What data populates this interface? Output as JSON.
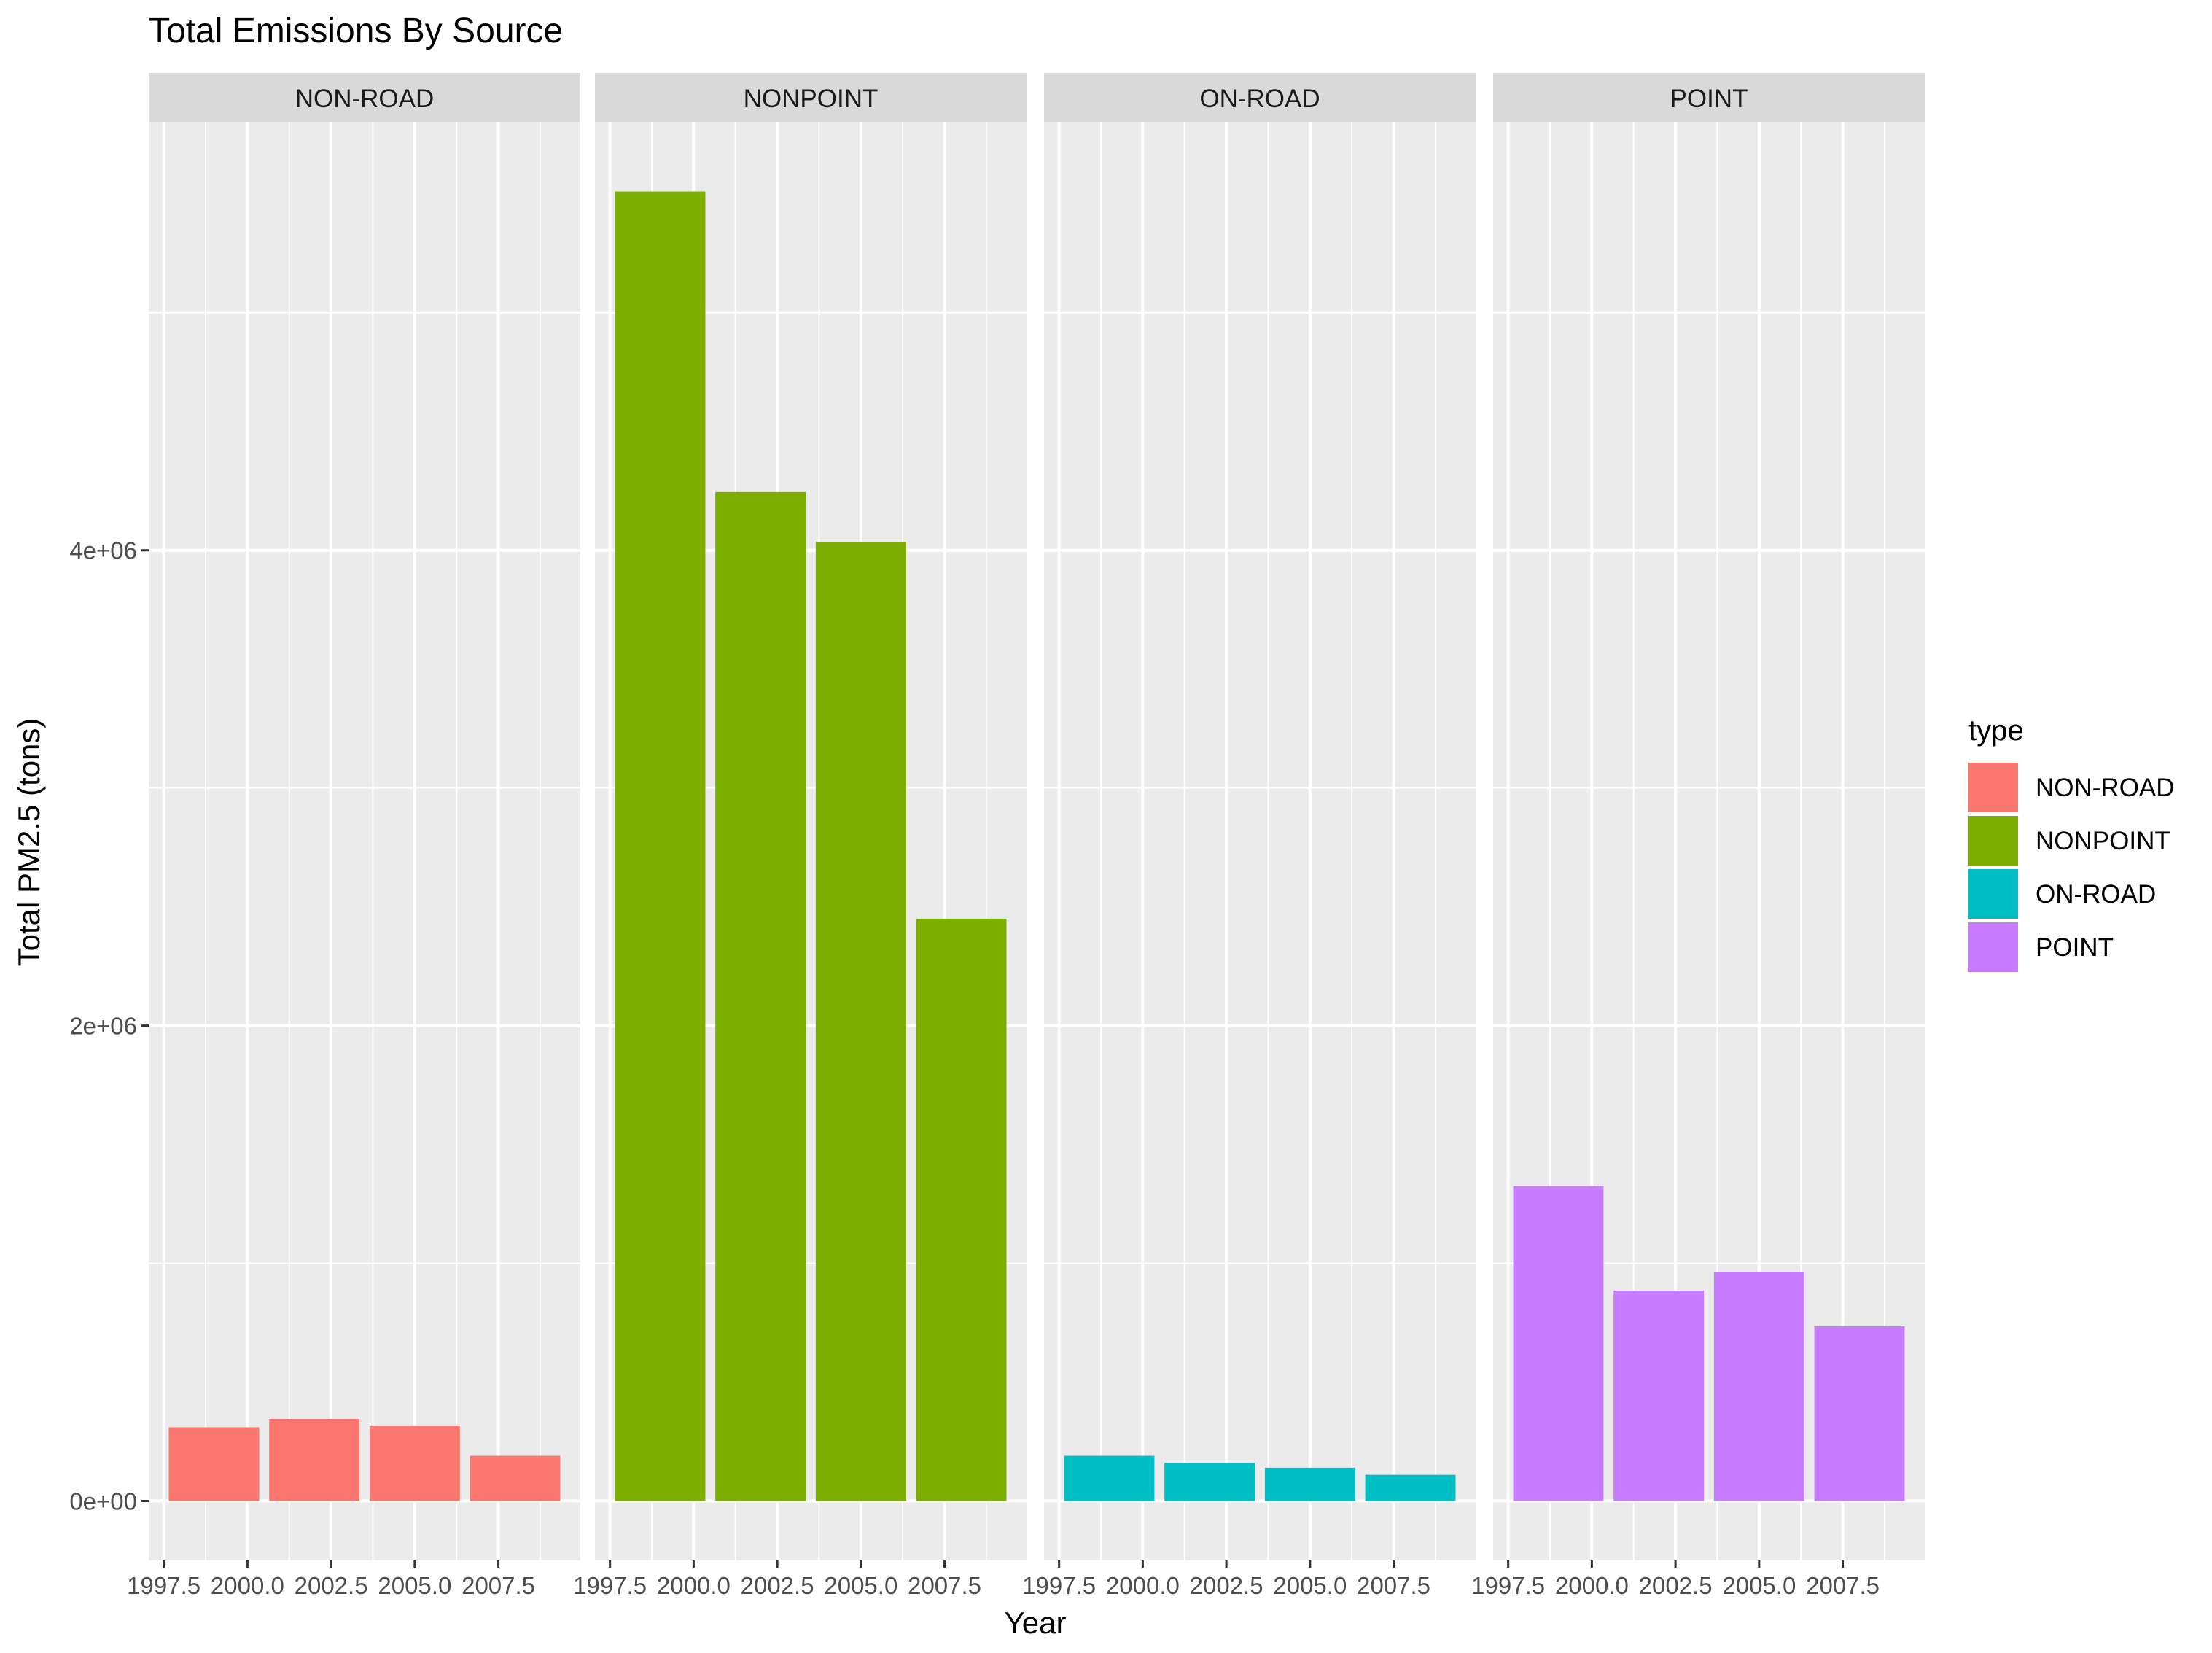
{
  "chart_data": {
    "type": "bar",
    "title": "Total Emissions By Source",
    "xlabel": "Year",
    "ylabel": "Total PM2.5 (tons)",
    "facet_by": "type",
    "facets": [
      "NON-ROAD",
      "NONPOINT",
      "ON-ROAD",
      "POINT"
    ],
    "x": [
      1999,
      2002,
      2005,
      2008
    ],
    "x_ticks": [
      1997.5,
      2000.0,
      2002.5,
      2005.0,
      2007.5
    ],
    "x_tick_labels": [
      "1997.5",
      "2000.0",
      "2002.5",
      "2005.0",
      "2007.5"
    ],
    "xlim": [
      1997.05,
      2009.95
    ],
    "y_ticks": [
      0,
      2000000,
      4000000
    ],
    "y_tick_labels": [
      "0e+00",
      "2e+06",
      "4e+06"
    ],
    "ylim": [
      -250000,
      5800000
    ],
    "grid": true,
    "legend": {
      "title": "type",
      "position": "right",
      "entries": [
        "NON-ROAD",
        "NONPOINT",
        "ON-ROAD",
        "POINT"
      ]
    },
    "series": [
      {
        "name": "NON-ROAD",
        "color": "#F8766D",
        "values": [
          310000,
          345000,
          318000,
          190000
        ]
      },
      {
        "name": "NONPOINT",
        "color": "#7CAE00",
        "values": [
          5510000,
          4245000,
          4035000,
          2450000
        ]
      },
      {
        "name": "ON-ROAD",
        "color": "#00BFC4",
        "values": [
          190000,
          160000,
          140000,
          110000
        ]
      },
      {
        "name": "POINT",
        "color": "#C77CFF",
        "values": [
          1325000,
          885000,
          965000,
          735000
        ]
      }
    ]
  }
}
